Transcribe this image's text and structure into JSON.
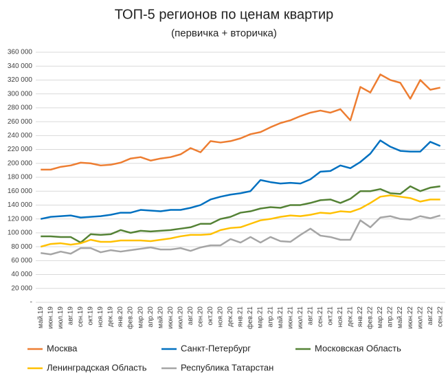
{
  "chart_data": {
    "type": "line",
    "title": "ТОП-5 регионов по ценам квартир",
    "subtitle": "(первичка + вторичка)",
    "categories": [
      "май.19",
      "июн.19",
      "июл.19",
      "авг.19",
      "сен.19",
      "окт.19",
      "ноя.19",
      "дек.19",
      "янв.20",
      "фев.20",
      "мар.20",
      "апр.20",
      "май.20",
      "июн.20",
      "июл.20",
      "авг.20",
      "сен.20",
      "окт.20",
      "ноя.20",
      "дек.20",
      "янв.21",
      "фев.21",
      "мар.21",
      "апр.21",
      "май.21",
      "июн.21",
      "июл.21",
      "авг.21",
      "сен.21",
      "окт.21",
      "ноя.21",
      "дек.21",
      "янв.22",
      "фев.22",
      "мар.22",
      "апр.22",
      "май.22",
      "июн.22",
      "июл.22",
      "авг.22",
      "сен.22"
    ],
    "series": [
      {
        "name": "Москва",
        "color": "#ed7d31",
        "values": [
          191000,
          191000,
          195000,
          197000,
          201000,
          200000,
          197000,
          198000,
          201000,
          207000,
          209000,
          204000,
          207000,
          209000,
          213000,
          222000,
          216000,
          232000,
          230000,
          232000,
          236000,
          242000,
          245000,
          252000,
          258000,
          262000,
          268000,
          273000,
          276000,
          273000,
          278000,
          262000,
          310000,
          302000,
          328000,
          320000,
          316000,
          293000,
          320000,
          306000,
          309000
        ]
      },
      {
        "name": "Санкт-Петербург",
        "color": "#0070c0",
        "values": [
          120000,
          123000,
          124000,
          125000,
          122000,
          123000,
          124000,
          126000,
          129000,
          129000,
          133000,
          132000,
          131000,
          133000,
          133000,
          136000,
          140000,
          148000,
          152000,
          155000,
          157000,
          160000,
          176000,
          173000,
          171000,
          172000,
          171000,
          177000,
          188000,
          189000,
          197000,
          193000,
          202000,
          214000,
          233000,
          224000,
          218000,
          217000,
          217000,
          231000,
          225000
        ]
      },
      {
        "name": "Московская Область",
        "color": "#548235",
        "values": [
          95000,
          95000,
          94000,
          94000,
          86000,
          98000,
          97000,
          98000,
          104000,
          100000,
          103000,
          102000,
          103000,
          104000,
          106000,
          108000,
          113000,
          113000,
          120000,
          123000,
          129000,
          131000,
          135000,
          137000,
          136000,
          140000,
          140000,
          143000,
          147000,
          148000,
          143000,
          149000,
          160000,
          160000,
          163000,
          157000,
          156000,
          167000,
          160000,
          165000,
          167000
        ]
      },
      {
        "name": "Ленинградская Область",
        "color": "#ffc000",
        "values": [
          80000,
          84000,
          85000,
          83000,
          85000,
          90000,
          87000,
          87000,
          89000,
          89000,
          89000,
          88000,
          90000,
          92000,
          95000,
          97000,
          97000,
          98000,
          104000,
          107000,
          108000,
          113000,
          118000,
          120000,
          123000,
          125000,
          124000,
          126000,
          129000,
          128000,
          131000,
          130000,
          135000,
          143000,
          152000,
          154000,
          152000,
          150000,
          145000,
          148000,
          148000
        ]
      },
      {
        "name": "Республика Татарстан",
        "color": "#a5a5a5",
        "values": [
          71000,
          69000,
          73000,
          70000,
          78000,
          78000,
          72000,
          75000,
          73000,
          75000,
          77000,
          79000,
          76000,
          76000,
          78000,
          74000,
          79000,
          82000,
          82000,
          91000,
          86000,
          94000,
          86000,
          94000,
          88000,
          87000,
          97000,
          106000,
          96000,
          94000,
          90000,
          90000,
          118000,
          108000,
          122000,
          124000,
          120000,
          119000,
          124000,
          121000,
          125000
        ]
      }
    ],
    "ylim": [
      0,
      360000
    ],
    "yticks": [
      {
        "value": 0,
        "label": "-"
      },
      {
        "value": 20000,
        "label": "20 000"
      },
      {
        "value": 40000,
        "label": "40 000"
      },
      {
        "value": 60000,
        "label": "60 000"
      },
      {
        "value": 80000,
        "label": "80 000"
      },
      {
        "value": 100000,
        "label": "100 000"
      },
      {
        "value": 120000,
        "label": "120 000"
      },
      {
        "value": 140000,
        "label": "140 000"
      },
      {
        "value": 160000,
        "label": "160 000"
      },
      {
        "value": 180000,
        "label": "180 000"
      },
      {
        "value": 200000,
        "label": "200 000"
      },
      {
        "value": 220000,
        "label": "220 000"
      },
      {
        "value": 240000,
        "label": "240 000"
      },
      {
        "value": 260000,
        "label": "260 000"
      },
      {
        "value": 280000,
        "label": "280 000"
      },
      {
        "value": 300000,
        "label": "300 000"
      },
      {
        "value": 320000,
        "label": "320 000"
      },
      {
        "value": 340000,
        "label": "340 000"
      },
      {
        "value": 360000,
        "label": "360 000"
      }
    ],
    "grid": true
  }
}
